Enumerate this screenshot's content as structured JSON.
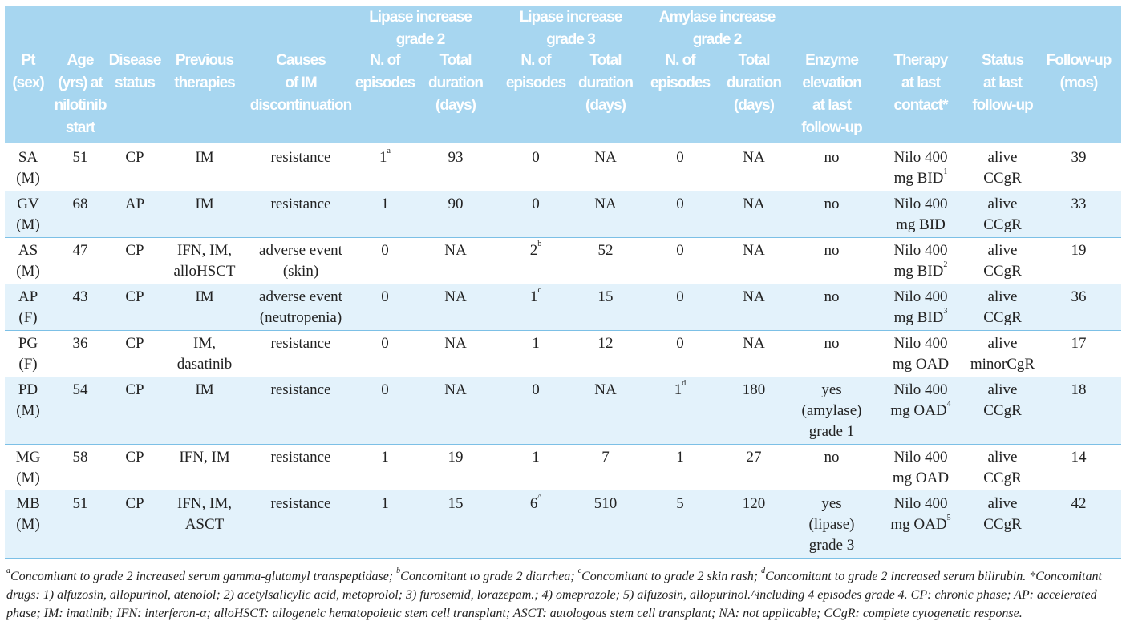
{
  "table": {
    "groups": [
      [
        "Lipase increase",
        "grade 2"
      ],
      [
        "Lipase increase",
        "grade 3"
      ],
      [
        "Amylase increase",
        "grade 2"
      ]
    ],
    "columns": [
      [
        "Pt",
        "(sex)"
      ],
      [
        "Age",
        "(yrs) at",
        "nilotinib",
        "start"
      ],
      [
        "Disease",
        "status"
      ],
      [
        "Previous",
        "therapies"
      ],
      [
        "Causes",
        "of IM",
        "discontinuation"
      ],
      [
        "N. of",
        "episodes"
      ],
      [
        "Total",
        "duration",
        "(days)"
      ],
      [
        "N. of",
        "episodes"
      ],
      [
        "Total",
        "duration",
        "(days)"
      ],
      [
        "N. of",
        "episodes"
      ],
      [
        "Total",
        "duration",
        "(days)"
      ],
      [
        "Enzyme",
        "elevation",
        "at last",
        "follow-up"
      ],
      [
        "Therapy",
        "at last",
        "contact*"
      ],
      [
        "Status",
        "at last",
        "follow-up"
      ],
      [
        "Follow-up",
        "(mos)"
      ]
    ],
    "rows": [
      [
        [
          "SA",
          "(M)"
        ],
        [
          "51"
        ],
        [
          "CP"
        ],
        [
          "IM"
        ],
        [
          "resistance"
        ],
        [
          {
            "text": "1",
            "sup": "a"
          }
        ],
        [
          "93"
        ],
        [
          "0"
        ],
        [
          "NA"
        ],
        [
          "0"
        ],
        [
          "NA"
        ],
        [
          "no"
        ],
        [
          "Nilo 400",
          {
            "text": "mg BID",
            "sup": "1"
          }
        ],
        [
          "alive",
          "CCgR"
        ],
        [
          "39"
        ]
      ],
      [
        [
          "GV",
          "(M)"
        ],
        [
          "68"
        ],
        [
          "AP"
        ],
        [
          "IM"
        ],
        [
          "resistance"
        ],
        [
          "1"
        ],
        [
          "90"
        ],
        [
          "0"
        ],
        [
          "NA"
        ],
        [
          "0"
        ],
        [
          "NA"
        ],
        [
          "no"
        ],
        [
          "Nilo 400",
          "mg BID"
        ],
        [
          "alive",
          "CCgR"
        ],
        [
          "33"
        ]
      ],
      [
        [
          "AS",
          "(M)"
        ],
        [
          "47"
        ],
        [
          "CP"
        ],
        [
          "IFN, IM,",
          "alloHSCT"
        ],
        [
          "adverse event",
          "(skin)"
        ],
        [
          "0"
        ],
        [
          "NA"
        ],
        [
          {
            "text": "2",
            "sup": "b"
          }
        ],
        [
          "52"
        ],
        [
          "0"
        ],
        [
          "NA"
        ],
        [
          "no"
        ],
        [
          "Nilo 400",
          {
            "text": "mg BID",
            "sup": "2"
          }
        ],
        [
          "alive",
          "CCgR"
        ],
        [
          "19"
        ]
      ],
      [
        [
          "AP",
          "(F)"
        ],
        [
          "43"
        ],
        [
          "CP"
        ],
        [
          "IM"
        ],
        [
          "adverse event",
          "(neutropenia)"
        ],
        [
          "0"
        ],
        [
          "NA"
        ],
        [
          {
            "text": "1",
            "sup": "c"
          }
        ],
        [
          "15"
        ],
        [
          "0"
        ],
        [
          "NA"
        ],
        [
          "no"
        ],
        [
          "Nilo 400",
          {
            "text": "mg BID",
            "sup": "3"
          }
        ],
        [
          "alive",
          "CCgR"
        ],
        [
          "36"
        ]
      ],
      [
        [
          "PG",
          "(F)"
        ],
        [
          "36"
        ],
        [
          "CP"
        ],
        [
          "IM,",
          "dasatinib"
        ],
        [
          "resistance"
        ],
        [
          "0"
        ],
        [
          "NA"
        ],
        [
          "1"
        ],
        [
          "12"
        ],
        [
          "0"
        ],
        [
          "NA"
        ],
        [
          "no"
        ],
        [
          "Nilo 400",
          "mg OAD"
        ],
        [
          "alive",
          "minorCgR"
        ],
        [
          "17"
        ]
      ],
      [
        [
          "PD",
          "(M)"
        ],
        [
          "54"
        ],
        [
          "CP"
        ],
        [
          "IM"
        ],
        [
          "resistance"
        ],
        [
          "0"
        ],
        [
          "NA"
        ],
        [
          "0"
        ],
        [
          "NA"
        ],
        [
          {
            "text": "1",
            "sup": "d"
          }
        ],
        [
          "180"
        ],
        [
          "yes",
          "(amylase)",
          "grade 1"
        ],
        [
          "Nilo 400",
          {
            "text": "mg OAD",
            "sup": "4"
          }
        ],
        [
          "alive",
          "CCgR"
        ],
        [
          "18"
        ]
      ],
      [
        [
          "MG",
          "(M)"
        ],
        [
          "58"
        ],
        [
          "CP"
        ],
        [
          "IFN, IM"
        ],
        [
          "resistance"
        ],
        [
          "1"
        ],
        [
          "19"
        ],
        [
          "1"
        ],
        [
          "7"
        ],
        [
          "1"
        ],
        [
          "27"
        ],
        [
          "no"
        ],
        [
          "Nilo 400",
          "mg OAD"
        ],
        [
          "alive",
          "CCgR"
        ],
        [
          "14"
        ]
      ],
      [
        [
          "MB",
          "(M)"
        ],
        [
          "51"
        ],
        [
          "CP"
        ],
        [
          "IFN, IM,",
          "ASCT"
        ],
        [
          "resistance"
        ],
        [
          "1"
        ],
        [
          "15"
        ],
        [
          {
            "text": "6",
            "sup": "^"
          }
        ],
        [
          "510"
        ],
        [
          "5"
        ],
        [
          "120"
        ],
        [
          "yes",
          "(lipase)",
          "grade 3"
        ],
        [
          "Nilo 400",
          {
            "text": "mg OAD",
            "sup": "5"
          }
        ],
        [
          "alive",
          "CCgR"
        ],
        [
          "42"
        ]
      ]
    ]
  },
  "footnote": [
    {
      "sup": "a",
      "text": "Concomitant to grade 2 increased serum gamma-glutamyl transpeptidase; "
    },
    {
      "sup": "b",
      "text": "Concomitant to grade 2 diarrhea; "
    },
    {
      "sup": "c",
      "text": "Concomitant to grade 2 skin rash; "
    },
    {
      "sup": "d",
      "text": "Concomitant to grade 2 increased serum bilirubin. *Concomitant drugs: 1) alfuzosin, allopurinol, atenolol;  2) acetylsalicylic acid, metoprolol; 3) furosemid, lorazepam.; 4) omeprazole;  5) alfuzosin, allopurinol.^including 4 episodes grade 4. CP: chronic phase; AP: accelerated phase; IM: imatinib; IFN: interferon-α; alloHSCT: allogeneic hematopoietic stem cell transplant; ASCT: autologous stem cell transplant; NA: not applicable; CCgR: complete cytogenetic response."
    }
  ]
}
